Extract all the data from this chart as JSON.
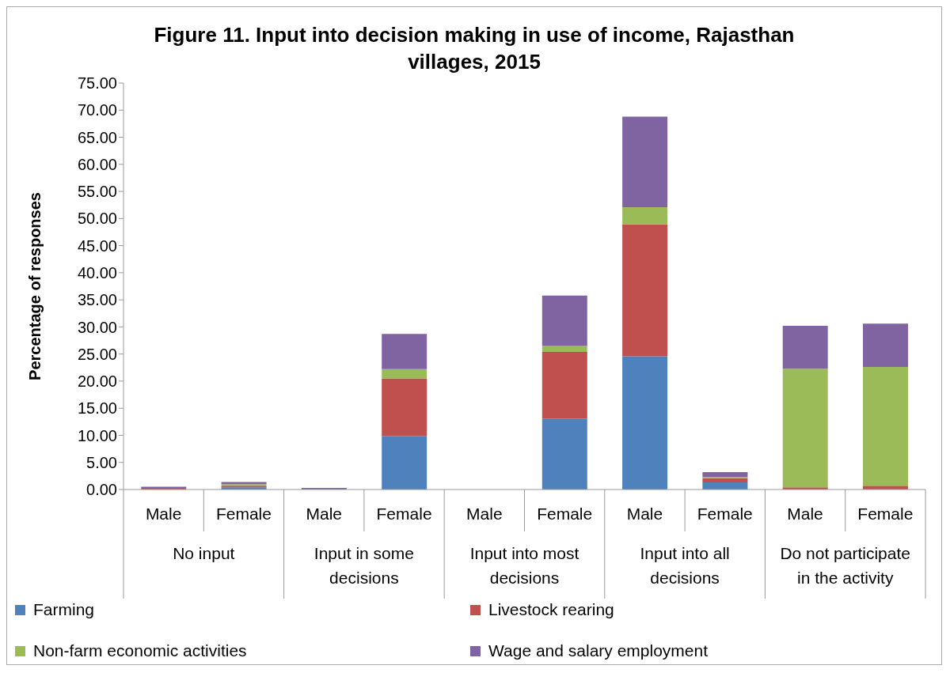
{
  "chart_data": {
    "type": "bar",
    "stacked": true,
    "title": "Figure 11. Input into decision making in use of income, Rajasthan villages, 2015",
    "ylabel": "Percentage of responses",
    "categories": [
      "Male",
      "Female",
      "Male",
      "Female",
      "Male",
      "Female",
      "Male",
      "Female",
      "Male",
      "Female"
    ],
    "annotations": [
      "No input",
      "Input in some decisions",
      "Input into most decisions",
      "Input into all decisions",
      "Do not participate in the activity"
    ],
    "series": [
      {
        "name": "Farming",
        "color": "#4f81bd",
        "values": [
          0,
          0.4,
          0,
          9.9,
          0,
          13.1,
          24.6,
          1.3,
          0,
          0
        ]
      },
      {
        "name": "Livestock rearing",
        "color": "#c0504d",
        "values": [
          0.3,
          0.3,
          0,
          10.6,
          0,
          12.3,
          24.3,
          0.8,
          0.4,
          0.7
        ]
      },
      {
        "name": "Non-farm economic activities",
        "color": "#9bbb59",
        "values": [
          0,
          0.3,
          0,
          1.7,
          0,
          1.1,
          3.2,
          0.2,
          21.9,
          21.9
        ]
      },
      {
        "name": "Wage and salary employment",
        "color": "#8064a2",
        "values": [
          0.2,
          0.4,
          0.3,
          6.5,
          0,
          9.3,
          16.7,
          0.9,
          7.9,
          8.0
        ]
      }
    ],
    "ylim": [
      0,
      75
    ],
    "yticks": [
      {
        "value": 0,
        "label": "0.00"
      },
      {
        "value": 5,
        "label": "5.00"
      },
      {
        "value": 10,
        "label": "10.00"
      },
      {
        "value": 15,
        "label": "15.00"
      },
      {
        "value": 20,
        "label": "20.00"
      },
      {
        "value": 25,
        "label": "25.00"
      },
      {
        "value": 30,
        "label": "30.00"
      },
      {
        "value": 35,
        "label": "35.00"
      },
      {
        "value": 40,
        "label": "40.00"
      },
      {
        "value": 45,
        "label": "45.00"
      },
      {
        "value": 50,
        "label": "50.00"
      },
      {
        "value": 55,
        "label": "55.00"
      },
      {
        "value": 60,
        "label": "60.00"
      },
      {
        "value": 65,
        "label": "65.00"
      },
      {
        "value": 70,
        "label": "70.00"
      },
      {
        "value": 75,
        "label": "75.00"
      }
    ],
    "grid": false,
    "legend": "bottom"
  }
}
